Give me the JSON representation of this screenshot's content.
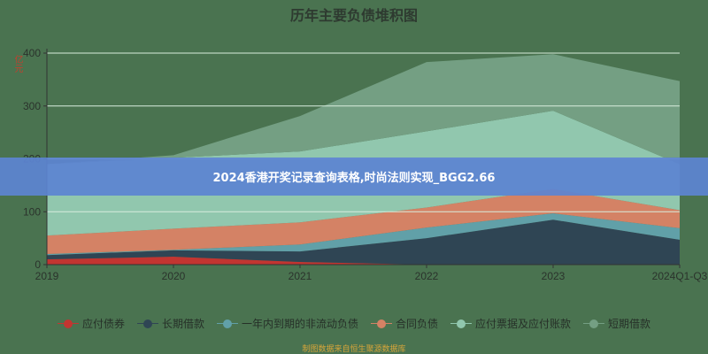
{
  "banner": "2024香港开奖记录查询表格,时尚法则实现_BGG2.66",
  "source": "制图数据来自恒生聚源数据库",
  "chart_data": {
    "type": "area",
    "stacked": true,
    "title": "历年主要负债堆积图",
    "ylabel": "亿元",
    "xlabel": "",
    "ylim": [
      0,
      400
    ],
    "yticks": [
      0,
      100,
      200,
      300,
      400
    ],
    "grid": true,
    "legend": "bottom",
    "categories": [
      "2019",
      "2020",
      "2021",
      "2022",
      "2023",
      "2024Q1-Q3"
    ],
    "series": [
      {
        "name": "应付债券",
        "color": "#c23531",
        "values": [
          10,
          15,
          5,
          0,
          0,
          0
        ]
      },
      {
        "name": "长期借款",
        "color": "#2f4554",
        "values": [
          8,
          12,
          20,
          50,
          85,
          47
        ]
      },
      {
        "name": "一年内到期的非流动负债",
        "color": "#61a0a8",
        "values": [
          2,
          1,
          13,
          20,
          12,
          22
        ]
      },
      {
        "name": "合同负债",
        "color": "#d48265",
        "values": [
          35,
          40,
          42,
          38,
          46,
          34
        ]
      },
      {
        "name": "应付票据及应付账款",
        "color": "#91c7ae",
        "values": [
          135,
          134,
          134,
          144,
          148,
          87
        ]
      },
      {
        "name": "短期借款",
        "color": "#749f83",
        "values": [
          0,
          5,
          67,
          131,
          107,
          157
        ]
      }
    ]
  }
}
